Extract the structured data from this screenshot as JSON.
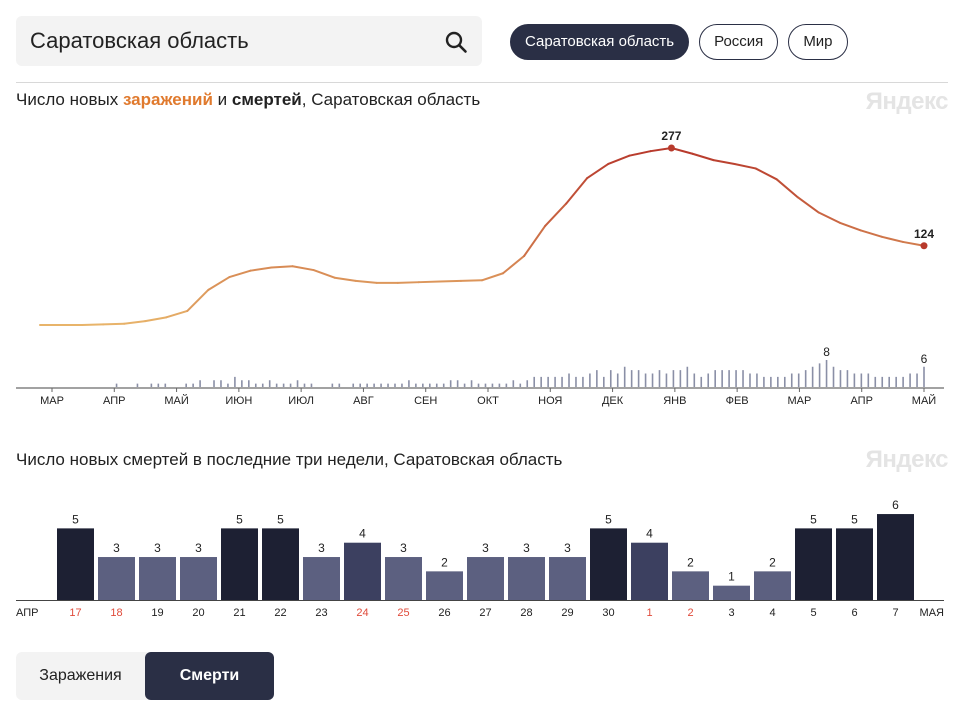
{
  "search": {
    "value": "Саратовская область"
  },
  "region_tabs": [
    {
      "label": "Саратовская область",
      "active": true
    },
    {
      "label": "Россия",
      "active": false
    },
    {
      "label": "Мир",
      "active": false
    }
  ],
  "chart1_title": {
    "prefix": "Число новых ",
    "infections": "заражений",
    "and": " и ",
    "deaths": "смертей",
    "suffix": ", Саратовская область"
  },
  "chart2_title": "Число новых смертей в последние три недели, Саратовская область",
  "watermark": "Яндекс",
  "metric_tabs": [
    {
      "label": "Заражения",
      "active": false
    },
    {
      "label": "Смерти",
      "active": true
    }
  ],
  "colors": {
    "infections_start": "#e8b46a",
    "infections_end": "#b83a2c",
    "deaths_bars": "#8a8fa6",
    "bar_dark": "#1d2033",
    "bar_light": "#5c6080",
    "weekend_label": "#e04b3b",
    "accent": "#2a2f45"
  },
  "chart_data": [
    {
      "type": "line",
      "x_labels": [
        "МАР",
        "АПР",
        "МАЙ",
        "ИЮН",
        "ИЮЛ",
        "АВГ",
        "СЕН",
        "ОКТ",
        "НОЯ",
        "ДЕК",
        "ЯНВ",
        "ФЕВ",
        "МАР",
        "АПР",
        "МАЙ"
      ],
      "series": [
        {
          "values": [
            0,
            0,
            0,
            1,
            2,
            6,
            12,
            22,
            55,
            75,
            85,
            90,
            92,
            86,
            74,
            69,
            66,
            66,
            67,
            68,
            69,
            70,
            81,
            108,
            155,
            190,
            230,
            252,
            265,
            272,
            277,
            268,
            258,
            252,
            245,
            228,
            200,
            176,
            160,
            148,
            138,
            130,
            124
          ]
        }
      ],
      "annotations": [
        {
          "text": "277",
          "value": 277
        },
        {
          "text": "124",
          "value": 124
        }
      ]
    },
    {
      "type": "bar",
      "values": [
        0,
        0,
        0,
        0,
        0,
        0,
        0,
        0,
        0,
        0,
        0,
        1,
        0,
        0,
        1,
        0,
        1,
        1,
        1,
        0,
        0,
        1,
        1,
        2,
        0,
        2,
        2,
        1,
        3,
        2,
        2,
        1,
        1,
        2,
        1,
        1,
        1,
        2,
        1,
        1,
        0,
        0,
        1,
        1,
        0,
        1,
        1,
        1,
        1,
        1,
        1,
        1,
        1,
        2,
        1,
        1,
        1,
        1,
        1,
        2,
        2,
        1,
        2,
        1,
        1,
        1,
        1,
        1,
        2,
        1,
        2,
        3,
        3,
        3,
        3,
        3,
        4,
        3,
        3,
        4,
        5,
        3,
        5,
        4,
        6,
        5,
        5,
        4,
        4,
        5,
        4,
        5,
        5,
        6,
        4,
        3,
        4,
        5,
        5,
        5,
        5,
        5,
        4,
        4,
        3,
        3,
        3,
        3,
        4,
        4,
        5,
        6,
        7,
        8,
        6,
        5,
        5,
        4,
        4,
        4,
        3,
        3,
        3,
        3,
        3,
        4,
        4,
        6
      ],
      "annotations": [
        {
          "text": "8",
          "value": 8
        },
        {
          "text": "6",
          "value": 6
        }
      ]
    },
    {
      "type": "bar",
      "month_start": "АПР",
      "month_end": "МАЯ",
      "categories": [
        "17",
        "18",
        "19",
        "20",
        "21",
        "22",
        "23",
        "24",
        "25",
        "26",
        "27",
        "28",
        "29",
        "30",
        "1",
        "2",
        "3",
        "4",
        "5",
        "6",
        "7"
      ],
      "values": [
        5,
        3,
        3,
        3,
        5,
        5,
        3,
        4,
        3,
        2,
        3,
        3,
        3,
        5,
        4,
        2,
        1,
        2,
        5,
        5,
        6
      ],
      "weekend": [
        true,
        true,
        false,
        false,
        false,
        false,
        false,
        true,
        true,
        false,
        false,
        false,
        false,
        false,
        true,
        true,
        false,
        false,
        false,
        false,
        false
      ]
    }
  ]
}
